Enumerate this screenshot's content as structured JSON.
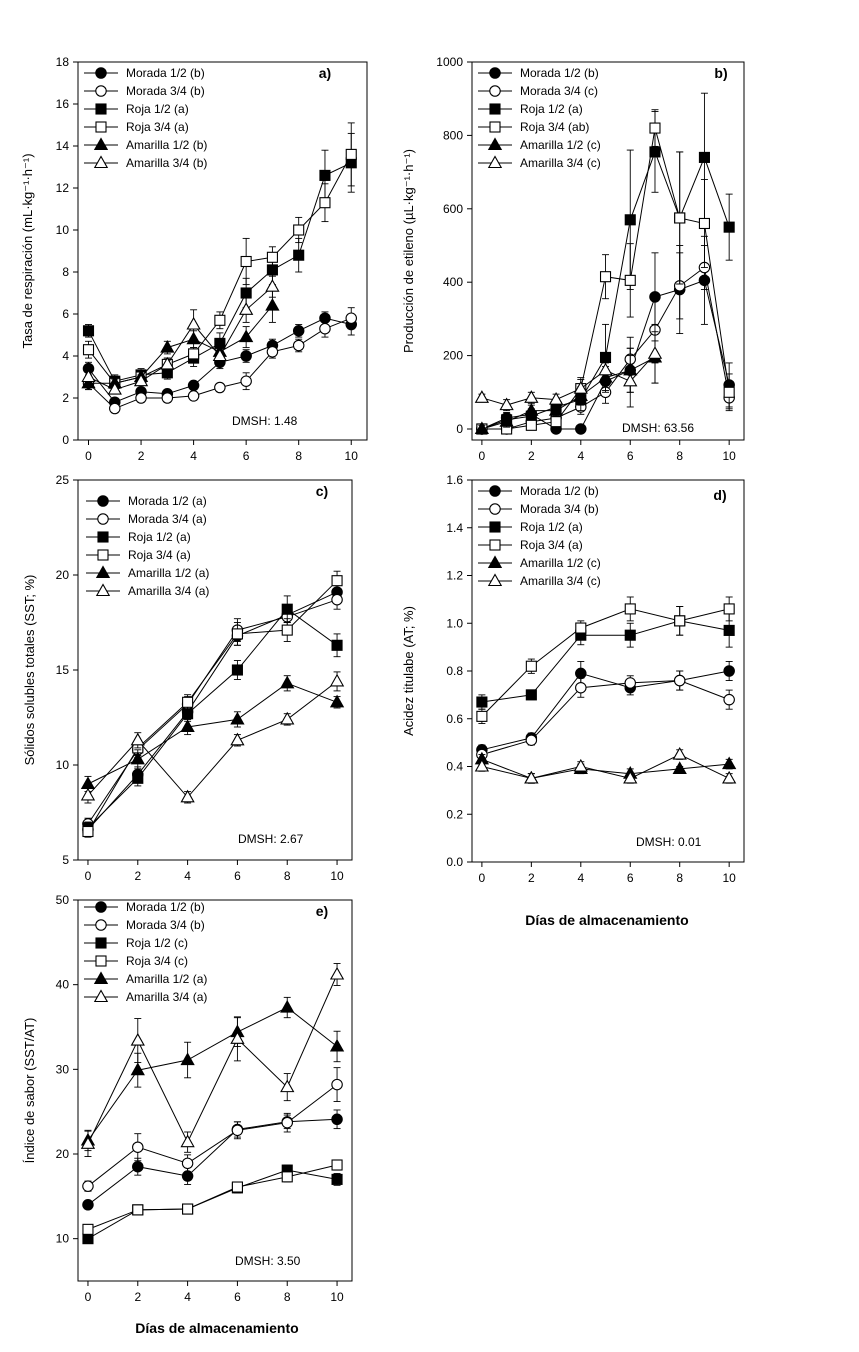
{
  "x_axis_title": "Días de almacenamiento",
  "chart_data": [
    {
      "id": "a",
      "type": "line",
      "panel_label": "a)",
      "ylabel": "Tasa de respiración (mL·kg⁻¹·h⁻¹)",
      "xlabel": "",
      "xlim": [
        -0.4,
        10.6
      ],
      "ylim": [
        0,
        18
      ],
      "xticks": [
        0,
        2,
        4,
        6,
        8,
        10
      ],
      "yticks": [
        0,
        2,
        4,
        6,
        8,
        10,
        12,
        14,
        16,
        18
      ],
      "note": "DMSH: 1.48",
      "series": [
        {
          "name": "Morada 1/2 (b)",
          "marker": "circle-filled",
          "x": [
            0,
            1,
            2,
            3,
            4,
            5,
            6,
            7,
            8,
            9,
            10
          ],
          "y": [
            3.4,
            1.8,
            2.3,
            2.2,
            2.6,
            3.7,
            4.0,
            4.5,
            5.2,
            5.8,
            5.5
          ],
          "err": [
            0.3,
            0.2,
            0.3,
            0.2,
            0.2,
            0.3,
            0.3,
            0.3,
            0.3,
            0.3,
            0.5
          ]
        },
        {
          "name": "Morada 3/4 (b)",
          "marker": "circle-open",
          "x": [
            0,
            1,
            2,
            3,
            4,
            5,
            6,
            7,
            8,
            9,
            10
          ],
          "y": [
            2.7,
            1.5,
            2.0,
            2.0,
            2.1,
            2.5,
            2.8,
            4.2,
            4.5,
            5.3,
            5.8
          ],
          "err": [
            0.3,
            0.2,
            0.2,
            0.2,
            0.2,
            0.2,
            0.4,
            0.3,
            0.3,
            0.4,
            0.5
          ]
        },
        {
          "name": "Roja 1/2 (a)",
          "marker": "square-filled",
          "x": [
            0,
            1,
            2,
            3,
            4,
            5,
            6,
            7,
            8,
            9,
            10
          ],
          "y": [
            5.2,
            2.8,
            3.1,
            3.2,
            3.9,
            4.6,
            7.0,
            8.1,
            8.8,
            12.6,
            13.2
          ],
          "err": [
            0.3,
            0.3,
            0.3,
            0.3,
            0.4,
            0.5,
            0.7,
            0.7,
            0.8,
            1.2,
            1.4
          ]
        },
        {
          "name": "Roja 3/4 (a)",
          "marker": "square-open",
          "x": [
            0,
            1,
            2,
            3,
            4,
            5,
            6,
            7,
            8,
            9,
            10
          ],
          "y": [
            4.3,
            2.7,
            3.0,
            3.6,
            4.1,
            5.7,
            8.5,
            8.7,
            10.0,
            11.3,
            13.6
          ],
          "err": [
            0.4,
            0.3,
            0.3,
            0.3,
            0.3,
            0.4,
            1.1,
            0.5,
            0.6,
            0.9,
            1.5
          ]
        },
        {
          "name": "Amarilla 1/2 (b)",
          "marker": "triangle-filled",
          "x": [
            0,
            1,
            2,
            3,
            4,
            5,
            6,
            7
          ],
          "y": [
            2.7,
            2.7,
            3.0,
            4.4,
            4.8,
            4.2,
            4.9,
            6.4
          ],
          "err": [
            0.3,
            0.2,
            0.3,
            0.3,
            0.4,
            0.5,
            0.5,
            0.8
          ]
        },
        {
          "name": "Amarilla 3/4 (b)",
          "marker": "triangle-open",
          "x": [
            0,
            1,
            2,
            3,
            4,
            5,
            6,
            7
          ],
          "y": [
            3.0,
            2.4,
            2.8,
            3.6,
            5.5,
            4.0,
            6.2,
            7.3
          ],
          "err": [
            0.3,
            0.2,
            0.3,
            0.3,
            0.7,
            0.4,
            0.6,
            0.5
          ]
        }
      ]
    },
    {
      "id": "b",
      "type": "line",
      "panel_label": "b)",
      "ylabel": "Producción de etileno (µL·kg⁻¹·h⁻¹)",
      "xlabel": "",
      "xlim": [
        -0.4,
        10.6
      ],
      "ylim": [
        -30,
        1000
      ],
      "xticks": [
        0,
        2,
        4,
        6,
        8,
        10
      ],
      "yticks": [
        0,
        200,
        400,
        600,
        800,
        1000
      ],
      "note": "DMSH: 63.56",
      "series": [
        {
          "name": "Morada 1/2 (b)",
          "marker": "circle-filled",
          "x": [
            0,
            1,
            2,
            3,
            4,
            5,
            6,
            7,
            8,
            9,
            10
          ],
          "y": [
            0,
            30,
            40,
            0,
            0,
            130,
            160,
            360,
            380,
            405,
            120
          ],
          "err": [
            10,
            15,
            15,
            5,
            5,
            40,
            60,
            120,
            120,
            120,
            60
          ]
        },
        {
          "name": "Morada 3/4 (c)",
          "marker": "circle-open",
          "x": [
            0,
            1,
            2,
            3,
            4,
            5,
            6,
            7,
            8,
            9,
            10
          ],
          "y": [
            0,
            0,
            20,
            30,
            60,
            100,
            190,
            270,
            390,
            440,
            85
          ],
          "err": [
            10,
            10,
            15,
            15,
            20,
            30,
            60,
            90,
            90,
            60,
            30
          ]
        },
        {
          "name": "Roja 1/2 (a)",
          "marker": "square-filled",
          "x": [
            0,
            1,
            2,
            3,
            4,
            5,
            6,
            7,
            8,
            9,
            10
          ],
          "y": [
            0,
            25,
            35,
            60,
            80,
            195,
            570,
            755,
            575,
            740,
            550
          ],
          "err": [
            10,
            15,
            15,
            20,
            30,
            90,
            190,
            110,
            180,
            175,
            90
          ]
        },
        {
          "name": "Roja 3/4 (ab)",
          "marker": "square-open",
          "x": [
            0,
            1,
            2,
            3,
            4,
            5,
            6,
            7,
            8,
            9,
            10
          ],
          "y": [
            0,
            0,
            10,
            20,
            110,
            415,
            405,
            820,
            575,
            560,
            100
          ],
          "err": [
            10,
            10,
            10,
            15,
            30,
            60,
            100,
            50,
            180,
            120,
            50
          ]
        },
        {
          "name": "Amarilla 1/2 (c)",
          "marker": "triangle-filled",
          "x": [
            0,
            1,
            2,
            3,
            4,
            5,
            6,
            7
          ],
          "y": [
            0,
            20,
            50,
            50,
            90,
            140,
            160,
            195
          ],
          "err": [
            10,
            15,
            15,
            15,
            25,
            40,
            60,
            70
          ]
        },
        {
          "name": "Amarilla 3/4 (c)",
          "marker": "triangle-open",
          "x": [
            0,
            1,
            2,
            3,
            4,
            5,
            6,
            7
          ],
          "y": [
            85,
            65,
            85,
            80,
            110,
            160,
            130,
            205
          ],
          "err": [
            10,
            15,
            15,
            15,
            25,
            40,
            70,
            80
          ]
        }
      ]
    },
    {
      "id": "c",
      "type": "line",
      "panel_label": "c)",
      "ylabel": "Sólidos solubles totales (SST; %)",
      "xlabel": "",
      "xlim": [
        -0.4,
        10.6
      ],
      "ylim": [
        5,
        25
      ],
      "xticks": [
        0,
        2,
        4,
        6,
        8,
        10
      ],
      "yticks": [
        5,
        10,
        15,
        20,
        25
      ],
      "note": "DMSH: 2.67",
      "series": [
        {
          "name": "Morada 1/2 (a)",
          "marker": "circle-filled",
          "x": [
            0,
            2,
            4,
            6,
            8,
            10
          ],
          "y": [
            6.6,
            9.5,
            12.8,
            16.8,
            17.9,
            19.1
          ],
          "err": [
            0.3,
            0.4,
            0.4,
            0.5,
            0.4,
            0.4
          ]
        },
        {
          "name": "Morada 3/4 (a)",
          "marker": "circle-open",
          "x": [
            0,
            2,
            4,
            6,
            8,
            10
          ],
          "y": [
            6.9,
            10.8,
            13.2,
            17.1,
            17.8,
            18.7
          ],
          "err": [
            0.3,
            0.4,
            0.4,
            0.6,
            0.5,
            0.5
          ]
        },
        {
          "name": "Roja 1/2 (a)",
          "marker": "square-filled",
          "x": [
            0,
            2,
            4,
            6,
            8,
            10
          ],
          "y": [
            6.7,
            9.3,
            12.7,
            15.0,
            18.2,
            16.3
          ],
          "err": [
            0.3,
            0.4,
            0.4,
            0.5,
            0.7,
            0.6
          ]
        },
        {
          "name": "Roja 3/4 (a)",
          "marker": "square-open",
          "x": [
            0,
            2,
            4,
            6,
            8,
            10
          ],
          "y": [
            6.5,
            10.9,
            13.3,
            16.9,
            17.1,
            19.7
          ],
          "err": [
            0.3,
            0.4,
            0.4,
            0.6,
            0.6,
            0.5
          ]
        },
        {
          "name": "Amarilla 1/2 (a)",
          "marker": "triangle-filled",
          "x": [
            0,
            2,
            4,
            6,
            8,
            10
          ],
          "y": [
            9.0,
            10.3,
            12.0,
            12.4,
            14.3,
            13.3
          ],
          "err": [
            0.4,
            0.5,
            0.4,
            0.4,
            0.4,
            0.3
          ]
        },
        {
          "name": "Amarilla 3/4 (a)",
          "marker": "triangle-open",
          "x": [
            0,
            2,
            4,
            6,
            8,
            10
          ],
          "y": [
            8.4,
            11.3,
            8.3,
            11.3,
            12.4,
            14.4
          ],
          "err": [
            0.4,
            0.4,
            0.3,
            0.3,
            0.3,
            0.5
          ]
        }
      ]
    },
    {
      "id": "d",
      "type": "line",
      "panel_label": "d)",
      "ylabel": "Acidez titulabe (AT; %)",
      "xlabel": "Días de almacenamiento",
      "xlim": [
        -0.4,
        10.6
      ],
      "ylim": [
        0,
        1.6
      ],
      "xticks": [
        0,
        2,
        4,
        6,
        8,
        10
      ],
      "yticks": [
        0.0,
        0.2,
        0.4,
        0.6,
        0.8,
        1.0,
        1.2,
        1.4,
        1.6
      ],
      "ytick_labels": [
        "0.0",
        "0.2",
        "0.4",
        "0.6",
        "0.8",
        "1.0",
        "1.2",
        "1.4",
        "1.6"
      ],
      "note": "DMSH: 0.01",
      "series": [
        {
          "name": "Morada 1/2 (b)",
          "marker": "circle-filled",
          "x": [
            0,
            2,
            4,
            6,
            8,
            10
          ],
          "y": [
            0.47,
            0.52,
            0.79,
            0.73,
            0.76,
            0.8
          ],
          "err": [
            0.02,
            0.02,
            0.05,
            0.03,
            0.04,
            0.04
          ]
        },
        {
          "name": "Morada 3/4 (b)",
          "marker": "circle-open",
          "x": [
            0,
            2,
            4,
            6,
            8,
            10
          ],
          "y": [
            0.45,
            0.51,
            0.73,
            0.75,
            0.76,
            0.68
          ],
          "err": [
            0.02,
            0.02,
            0.04,
            0.03,
            0.04,
            0.04
          ]
        },
        {
          "name": "Roja 1/2 (a)",
          "marker": "square-filled",
          "x": [
            0,
            2,
            4,
            6,
            8,
            10
          ],
          "y": [
            0.67,
            0.7,
            0.95,
            0.95,
            1.01,
            0.97
          ],
          "err": [
            0.03,
            0.02,
            0.04,
            0.05,
            0.06,
            0.07
          ]
        },
        {
          "name": "Roja 3/4 (a)",
          "marker": "square-open",
          "x": [
            0,
            2,
            4,
            6,
            8,
            10
          ],
          "y": [
            0.61,
            0.82,
            0.98,
            1.06,
            1.01,
            1.06
          ],
          "err": [
            0.03,
            0.03,
            0.03,
            0.05,
            0.06,
            0.05
          ]
        },
        {
          "name": "Amarilla 1/2 (c)",
          "marker": "triangle-filled",
          "x": [
            0,
            2,
            4,
            6,
            8,
            10
          ],
          "y": [
            0.43,
            0.35,
            0.39,
            0.37,
            0.39,
            0.41
          ],
          "err": [
            0.02,
            0.02,
            0.02,
            0.02,
            0.01,
            0.02
          ]
        },
        {
          "name": "Amarilla 3/4 (c)",
          "marker": "triangle-open",
          "x": [
            0,
            2,
            4,
            6,
            8,
            10
          ],
          "y": [
            0.4,
            0.35,
            0.4,
            0.35,
            0.45,
            0.35
          ],
          "err": [
            0.02,
            0.02,
            0.02,
            0.02,
            0.02,
            0.02
          ]
        }
      ]
    },
    {
      "id": "e",
      "type": "line",
      "panel_label": "e)",
      "ylabel": "Índice de sabor (SST/AT)",
      "xlabel": "Días de almacenamiento",
      "xlim": [
        -0.4,
        10.6
      ],
      "ylim": [
        5,
        50
      ],
      "xticks": [
        0,
        2,
        4,
        6,
        8,
        10
      ],
      "yticks": [
        10,
        20,
        30,
        40,
        50
      ],
      "note": "DMSH: 3.50",
      "series": [
        {
          "name": "Morada 1/2 (b)",
          "marker": "circle-filled",
          "x": [
            0,
            2,
            4,
            6,
            8,
            10
          ],
          "y": [
            14.0,
            18.5,
            17.4,
            22.9,
            23.8,
            24.1
          ],
          "err": [
            0.5,
            1.0,
            1.0,
            0.9,
            0.8,
            1.1
          ]
        },
        {
          "name": "Morada 3/4 (b)",
          "marker": "circle-open",
          "x": [
            0,
            2,
            4,
            6,
            8,
            10
          ],
          "y": [
            16.2,
            20.8,
            18.9,
            22.8,
            23.7,
            28.2
          ],
          "err": [
            0.6,
            1.6,
            1.0,
            1.0,
            1.1,
            2.0
          ]
        },
        {
          "name": "Roja 1/2 (c)",
          "marker": "square-filled",
          "x": [
            0,
            2,
            4,
            6,
            8,
            10
          ],
          "y": [
            10.0,
            13.4,
            13.5,
            16.0,
            18.1,
            17.0
          ],
          "err": [
            0.4,
            0.5,
            0.5,
            0.6,
            0.6,
            0.7
          ]
        },
        {
          "name": "Roja 3/4 (c)",
          "marker": "square-open",
          "x": [
            0,
            2,
            4,
            6,
            8,
            10
          ],
          "y": [
            11.1,
            13.4,
            13.5,
            16.1,
            17.3,
            18.7
          ],
          "err": [
            0.4,
            0.5,
            0.5,
            0.6,
            0.6,
            0.6
          ]
        },
        {
          "name": "Amarilla 1/2 (a)",
          "marker": "triangle-filled",
          "x": [
            0,
            2,
            4,
            6,
            8,
            10
          ],
          "y": [
            21.6,
            29.9,
            31.1,
            34.4,
            37.3,
            32.7
          ],
          "err": [
            1.2,
            2.0,
            2.1,
            1.7,
            1.2,
            1.8
          ]
        },
        {
          "name": "Amarilla 3/4 (a)",
          "marker": "triangle-open",
          "x": [
            0,
            2,
            4,
            6,
            8,
            10
          ],
          "y": [
            21.2,
            33.4,
            21.4,
            33.6,
            27.9,
            41.2
          ],
          "err": [
            1.5,
            2.6,
            1.2,
            2.6,
            1.6,
            1.3
          ]
        }
      ]
    }
  ]
}
